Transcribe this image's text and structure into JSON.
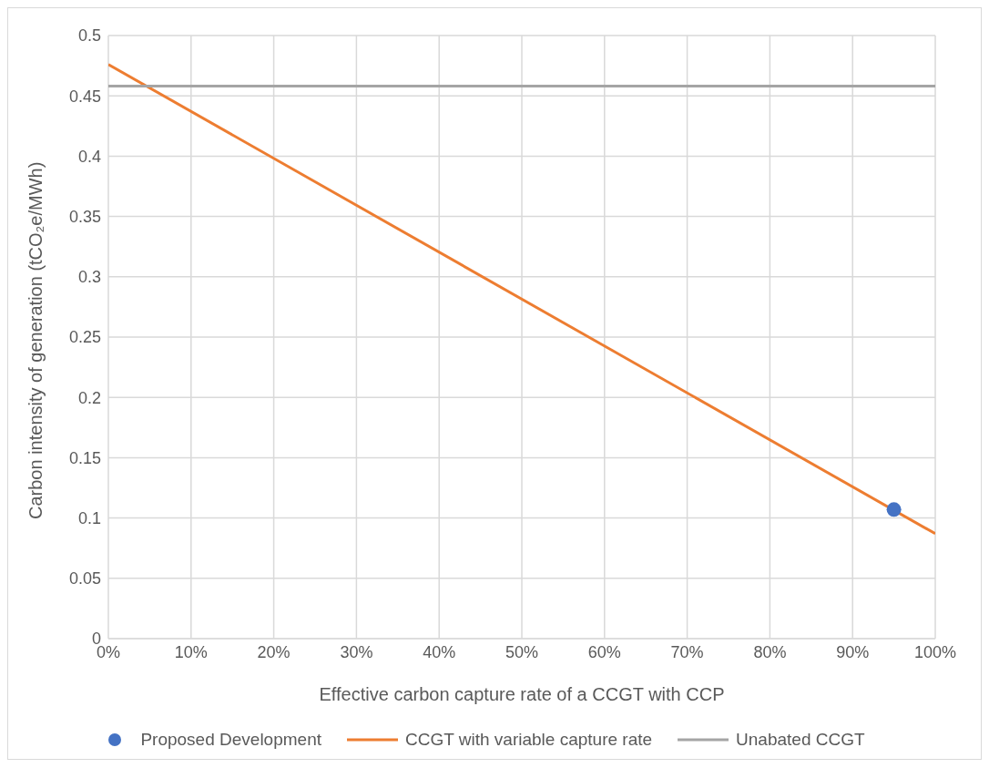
{
  "chart_data": {
    "type": "line",
    "xlabel": "Effective carbon capture rate of a CCGT with CCP",
    "ylabel": "Carbon intensity of generation (tCO₂e/MWh)",
    "series": [
      {
        "name": "Proposed Development",
        "type": "scatter",
        "marker": "circle",
        "color": "#4472c4",
        "x": [
          95
        ],
        "values": [
          0.107
        ]
      },
      {
        "name": "CCGT with variable capture rate",
        "marker": "none",
        "color": "#ed7d31",
        "x": [
          0,
          100
        ],
        "values": [
          0.476,
          0.087
        ]
      },
      {
        "name": "Unabated CCGT",
        "marker": "none",
        "color": "#a5a5a5",
        "x": [
          0,
          100
        ],
        "values": [
          0.458,
          0.458
        ]
      }
    ],
    "xlim": [
      0,
      100
    ],
    "xticks": [
      {
        "value": 0,
        "label": "0%"
      },
      {
        "value": 10,
        "label": "10%"
      },
      {
        "value": 20,
        "label": "20%"
      },
      {
        "value": 30,
        "label": "30%"
      },
      {
        "value": 40,
        "label": "40%"
      },
      {
        "value": 50,
        "label": "50%"
      },
      {
        "value": 60,
        "label": "60%"
      },
      {
        "value": 70,
        "label": "70%"
      },
      {
        "value": 80,
        "label": "80%"
      },
      {
        "value": 90,
        "label": "90%"
      },
      {
        "value": 100,
        "label": "100%"
      }
    ],
    "ylim": [
      0,
      0.5
    ],
    "yticks": [
      0,
      0.05,
      0.1,
      0.15,
      0.2,
      0.25,
      0.3,
      0.35,
      0.4,
      0.45,
      0.5
    ],
    "grid": true,
    "legend": "bottom"
  }
}
